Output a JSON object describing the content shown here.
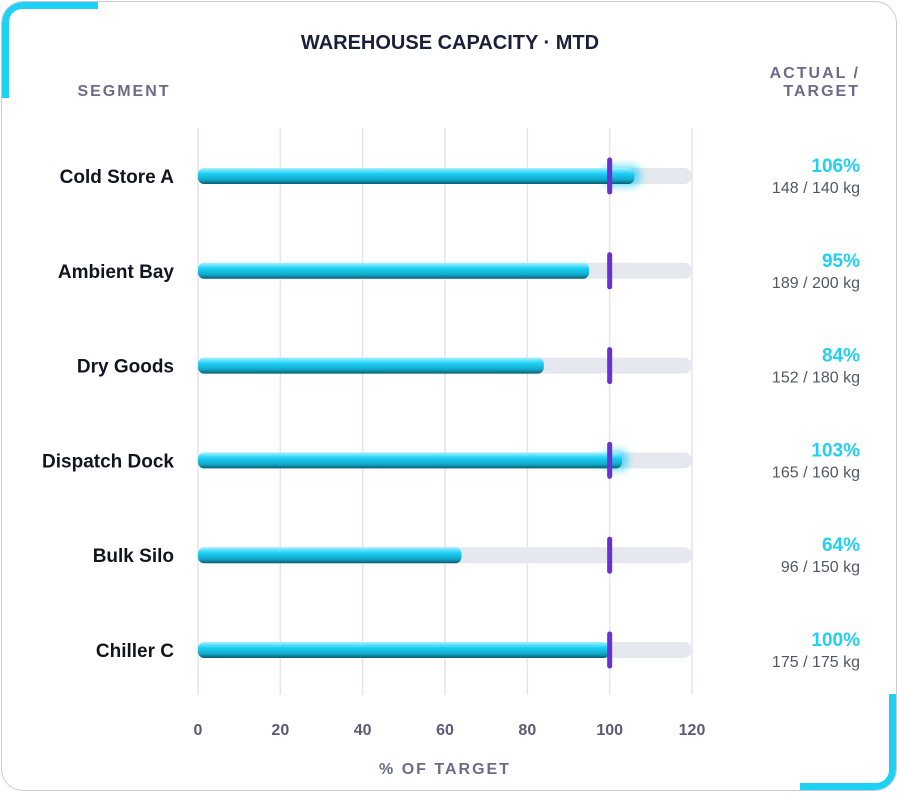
{
  "chart_data": {
    "type": "bar",
    "title": "WAREHOUSE CAPACITY · MTD",
    "segment_header": "SEGMENT",
    "actual_header": [
      "ACTUAL /",
      "TARGET"
    ],
    "xlabel": "% OF TARGET",
    "xlim": [
      0,
      120
    ],
    "x_ticks": [
      0,
      20,
      40,
      60,
      80,
      100,
      120
    ],
    "target_marker": 100,
    "grid": true,
    "categories": [
      "Cold Store A",
      "Ambient Bay",
      "Dry Goods",
      "Dispatch Dock",
      "Bulk Silo",
      "Chiller C"
    ],
    "values": [
      106,
      95,
      84,
      103,
      64,
      100
    ],
    "value_labels": [
      "106%",
      "95%",
      "84%",
      "103%",
      "64%",
      "100%"
    ],
    "detail_labels": [
      "148 / 140 kg",
      "189 / 200 kg",
      "152 / 180 kg",
      "165 / 160 kg",
      "96 / 150 kg",
      "175 / 175 kg"
    ],
    "colors": {
      "bar": "#1fd0f5",
      "bar_dark": "#0b5a6e",
      "track": "#e6e8ef",
      "target": "#6a2fd6",
      "grid": "#e4e4f0",
      "value_text": "#1fd0f5"
    }
  }
}
